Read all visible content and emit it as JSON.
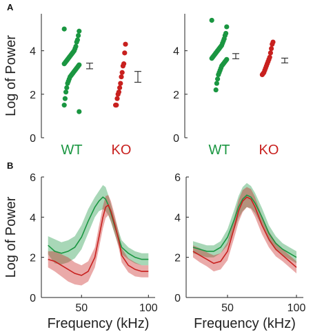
{
  "colors": {
    "wt": "#1a9641",
    "ko": "#c8201e",
    "axis": "#222222",
    "errbar": "#333333"
  },
  "panels": {
    "a_letter": "A",
    "b_letter": "B"
  },
  "chart_data": [
    {
      "type": "scatter",
      "panel": "A-left",
      "ylabel": "Log of Power",
      "ylim": [
        0,
        5.7
      ],
      "yticks": [
        "0",
        "2",
        "4"
      ],
      "categories": [
        "WT",
        "KO"
      ],
      "series": [
        {
          "name": "WT",
          "values": [
            5.0,
            4.9,
            4.7,
            4.5,
            4.4,
            4.2,
            4.1,
            4.0,
            3.95,
            3.9,
            3.85,
            3.8,
            3.75,
            3.7,
            3.65,
            3.6,
            3.55,
            3.5,
            3.45,
            3.4,
            3.35,
            3.3,
            3.25,
            3.2,
            3.15,
            3.1,
            3.05,
            3.0,
            2.95,
            2.9,
            2.85,
            2.8,
            2.7,
            2.6,
            2.5,
            2.3,
            2.1,
            1.8,
            1.5,
            1.2
          ]
        },
        {
          "name": "KO",
          "values": [
            4.3,
            3.9,
            3.4,
            3.3,
            3.0,
            2.8,
            2.5,
            2.3,
            2.1,
            2.0,
            1.8,
            1.5,
            1.5
          ]
        }
      ],
      "errorbars": [
        {
          "name": "WT",
          "mean": 3.3,
          "low": 3.17,
          "high": 3.43
        },
        {
          "name": "KO",
          "mean": 2.8,
          "low": 2.55,
          "high": 3.05
        }
      ]
    },
    {
      "type": "scatter",
      "panel": "A-right",
      "ylim": [
        0,
        5.7
      ],
      "yticks": [
        "0",
        "2",
        "4"
      ],
      "categories": [
        "WT",
        "KO"
      ],
      "series": [
        {
          "name": "WT",
          "values": [
            5.4,
            5.1,
            4.8,
            4.7,
            4.55,
            4.45,
            4.35,
            4.25,
            4.2,
            4.15,
            4.1,
            4.05,
            4.0,
            3.95,
            3.9,
            3.85,
            3.8,
            3.75,
            3.7,
            3.65,
            3.6,
            3.55,
            3.5,
            3.45,
            3.4,
            3.35,
            3.3,
            3.2,
            3.1,
            3.0,
            2.9,
            2.7,
            2.5,
            2.2
          ]
        },
        {
          "name": "KO",
          "values": [
            4.4,
            4.3,
            4.1,
            3.9,
            3.7,
            3.6,
            3.5,
            3.4,
            3.3,
            3.2,
            3.1,
            3.0,
            2.95,
            2.9
          ]
        }
      ],
      "errorbars": [
        {
          "name": "WT",
          "mean": 3.75,
          "low": 3.63,
          "high": 3.87
        },
        {
          "name": "KO",
          "mean": 3.55,
          "low": 3.44,
          "high": 3.66
        }
      ]
    },
    {
      "type": "line",
      "panel": "B-left",
      "xlabel": "Frequency (kHz)",
      "ylabel": "Log of Power",
      "xlim": [
        20,
        105
      ],
      "ylim": [
        0,
        6
      ],
      "xticks": [
        "50",
        "100"
      ],
      "yticks": [
        "0",
        "2",
        "4",
        "6"
      ],
      "x": [
        25,
        30,
        35,
        40,
        45,
        50,
        55,
        60,
        63,
        66,
        68,
        70,
        72,
        75,
        78,
        80,
        85,
        90,
        95,
        100
      ],
      "series": [
        {
          "name": "WT",
          "values": [
            2.6,
            2.3,
            2.2,
            2.3,
            2.5,
            3.0,
            3.8,
            4.5,
            4.8,
            5.0,
            4.9,
            4.6,
            4.2,
            3.5,
            2.9,
            2.5,
            2.2,
            2.0,
            1.9,
            1.9
          ],
          "band": [
            0.45,
            0.6,
            0.55,
            0.55,
            0.55,
            0.6,
            0.6,
            0.5,
            0.5,
            0.6,
            0.6,
            0.5,
            0.45,
            0.4,
            0.35,
            0.35,
            0.3,
            0.3,
            0.3,
            0.3
          ]
        },
        {
          "name": "KO",
          "values": [
            1.9,
            1.8,
            1.6,
            1.4,
            1.2,
            1.1,
            1.3,
            2.0,
            3.0,
            4.0,
            4.5,
            4.6,
            4.3,
            3.6,
            2.8,
            2.1,
            1.6,
            1.4,
            1.3,
            1.3
          ],
          "band": [
            0.4,
            0.5,
            0.55,
            0.6,
            0.55,
            0.5,
            0.5,
            0.5,
            0.55,
            0.55,
            0.55,
            0.5,
            0.5,
            0.45,
            0.4,
            0.35,
            0.35,
            0.35,
            0.3,
            0.3
          ]
        }
      ]
    },
    {
      "type": "line",
      "panel": "B-right",
      "xlabel": "Frequency (kHz)",
      "xlim": [
        20,
        105
      ],
      "ylim": [
        0,
        6
      ],
      "xticks": [
        "50",
        "100"
      ],
      "yticks": [
        "0",
        "2",
        "4",
        "6"
      ],
      "x": [
        25,
        30,
        35,
        40,
        45,
        50,
        55,
        58,
        61,
        64,
        67,
        70,
        75,
        80,
        85,
        90,
        95,
        100
      ],
      "series": [
        {
          "name": "WT",
          "values": [
            2.5,
            2.4,
            2.3,
            2.3,
            2.5,
            3.0,
            3.9,
            4.5,
            4.9,
            5.1,
            5.0,
            4.7,
            4.0,
            3.2,
            2.7,
            2.4,
            2.2,
            2.0
          ],
          "band": [
            0.3,
            0.3,
            0.3,
            0.3,
            0.3,
            0.4,
            0.5,
            0.55,
            0.6,
            0.6,
            0.55,
            0.5,
            0.45,
            0.4,
            0.35,
            0.3,
            0.3,
            0.3
          ]
        },
        {
          "name": "KO",
          "values": [
            2.3,
            2.1,
            1.9,
            1.7,
            1.8,
            2.3,
            3.5,
            4.3,
            4.8,
            5.0,
            4.9,
            4.5,
            3.6,
            2.9,
            2.4,
            2.1,
            1.8,
            1.5
          ],
          "band": [
            0.3,
            0.35,
            0.35,
            0.4,
            0.4,
            0.45,
            0.5,
            0.55,
            0.55,
            0.5,
            0.5,
            0.5,
            0.45,
            0.4,
            0.35,
            0.3,
            0.3,
            0.3
          ]
        }
      ]
    }
  ]
}
